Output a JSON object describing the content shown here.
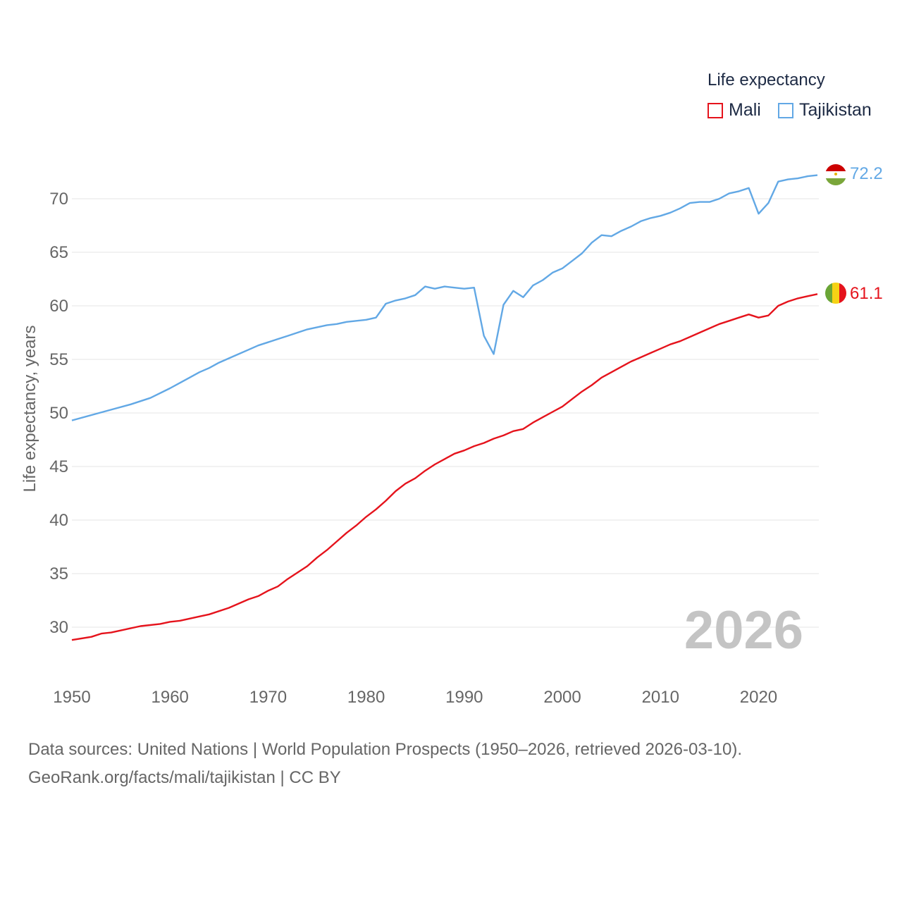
{
  "chart_data": {
    "type": "line",
    "title": "Life expectancy",
    "ylabel": "Life expectancy, years",
    "xlabel": "",
    "xlim": [
      1950,
      2026
    ],
    "ylim": [
      27,
      73.5
    ],
    "x_ticks": [
      "1950",
      "1960",
      "1970",
      "1980",
      "1990",
      "2000",
      "2010",
      "2020"
    ],
    "y_ticks": [
      "30",
      "35",
      "40",
      "45",
      "50",
      "55",
      "60",
      "65",
      "70"
    ],
    "year_watermark": "2026",
    "grid": true,
    "series": [
      {
        "name": "Mali",
        "color": "#e5131c",
        "end_label": "61.1",
        "flag": "mali-flag",
        "points": [
          [
            1950,
            28.8
          ],
          [
            1952,
            29.1
          ],
          [
            1953,
            29.4
          ],
          [
            1954,
            29.5
          ],
          [
            1955,
            29.7
          ],
          [
            1957,
            30.1
          ],
          [
            1959,
            30.3
          ],
          [
            1960,
            30.5
          ],
          [
            1961,
            30.6
          ],
          [
            1963,
            31.0
          ],
          [
            1964,
            31.2
          ],
          [
            1966,
            31.8
          ],
          [
            1968,
            32.6
          ],
          [
            1969,
            32.9
          ],
          [
            1970,
            33.4
          ],
          [
            1971,
            33.8
          ],
          [
            1972,
            34.5
          ],
          [
            1973,
            35.1
          ],
          [
            1974,
            35.7
          ],
          [
            1975,
            36.5
          ],
          [
            1976,
            37.2
          ],
          [
            1977,
            38.0
          ],
          [
            1978,
            38.8
          ],
          [
            1979,
            39.5
          ],
          [
            1980,
            40.3
          ],
          [
            1981,
            41.0
          ],
          [
            1982,
            41.8
          ],
          [
            1983,
            42.7
          ],
          [
            1984,
            43.4
          ],
          [
            1985,
            43.9
          ],
          [
            1986,
            44.6
          ],
          [
            1987,
            45.2
          ],
          [
            1988,
            45.7
          ],
          [
            1989,
            46.2
          ],
          [
            1990,
            46.5
          ],
          [
            1991,
            46.9
          ],
          [
            1992,
            47.2
          ],
          [
            1993,
            47.6
          ],
          [
            1994,
            47.9
          ],
          [
            1995,
            48.3
          ],
          [
            1996,
            48.5
          ],
          [
            1997,
            49.1
          ],
          [
            1998,
            49.6
          ],
          [
            1999,
            50.1
          ],
          [
            2000,
            50.6
          ],
          [
            2001,
            51.3
          ],
          [
            2002,
            52.0
          ],
          [
            2003,
            52.6
          ],
          [
            2004,
            53.3
          ],
          [
            2005,
            53.8
          ],
          [
            2006,
            54.3
          ],
          [
            2007,
            54.8
          ],
          [
            2008,
            55.2
          ],
          [
            2009,
            55.6
          ],
          [
            2010,
            56.0
          ],
          [
            2011,
            56.4
          ],
          [
            2012,
            56.7
          ],
          [
            2013,
            57.1
          ],
          [
            2014,
            57.5
          ],
          [
            2015,
            57.9
          ],
          [
            2016,
            58.3
          ],
          [
            2017,
            58.6
          ],
          [
            2018,
            58.9
          ],
          [
            2019,
            59.2
          ],
          [
            2020,
            58.9
          ],
          [
            2021,
            59.1
          ],
          [
            2022,
            60.0
          ],
          [
            2023,
            60.4
          ],
          [
            2024,
            60.7
          ],
          [
            2025,
            60.9
          ],
          [
            2026,
            61.1
          ]
        ]
      },
      {
        "name": "Tajikistan",
        "color": "#62a8e5",
        "end_label": "72.2",
        "flag": "tajikistan-flag",
        "points": [
          [
            1950,
            49.3
          ],
          [
            1952,
            49.8
          ],
          [
            1954,
            50.3
          ],
          [
            1956,
            50.8
          ],
          [
            1958,
            51.4
          ],
          [
            1960,
            52.3
          ],
          [
            1961,
            52.8
          ],
          [
            1962,
            53.3
          ],
          [
            1963,
            53.8
          ],
          [
            1964,
            54.2
          ],
          [
            1965,
            54.7
          ],
          [
            1966,
            55.1
          ],
          [
            1967,
            55.5
          ],
          [
            1968,
            55.9
          ],
          [
            1969,
            56.3
          ],
          [
            1970,
            56.6
          ],
          [
            1971,
            56.9
          ],
          [
            1972,
            57.2
          ],
          [
            1973,
            57.5
          ],
          [
            1974,
            57.8
          ],
          [
            1975,
            58.0
          ],
          [
            1976,
            58.2
          ],
          [
            1977,
            58.3
          ],
          [
            1978,
            58.5
          ],
          [
            1979,
            58.6
          ],
          [
            1980,
            58.7
          ],
          [
            1981,
            58.9
          ],
          [
            1982,
            60.2
          ],
          [
            1983,
            60.5
          ],
          [
            1984,
            60.7
          ],
          [
            1985,
            61.0
          ],
          [
            1986,
            61.8
          ],
          [
            1987,
            61.6
          ],
          [
            1988,
            61.8
          ],
          [
            1989,
            61.7
          ],
          [
            1990,
            61.6
          ],
          [
            1991,
            61.7
          ],
          [
            1992,
            57.2
          ],
          [
            1993,
            55.5
          ],
          [
            1994,
            60.1
          ],
          [
            1995,
            61.4
          ],
          [
            1996,
            60.8
          ],
          [
            1997,
            61.9
          ],
          [
            1998,
            62.4
          ],
          [
            1999,
            63.1
          ],
          [
            2000,
            63.5
          ],
          [
            2001,
            64.2
          ],
          [
            2002,
            64.9
          ],
          [
            2003,
            65.9
          ],
          [
            2004,
            66.6
          ],
          [
            2005,
            66.5
          ],
          [
            2006,
            67.0
          ],
          [
            2007,
            67.4
          ],
          [
            2008,
            67.9
          ],
          [
            2009,
            68.2
          ],
          [
            2010,
            68.4
          ],
          [
            2011,
            68.7
          ],
          [
            2012,
            69.1
          ],
          [
            2013,
            69.6
          ],
          [
            2014,
            69.7
          ],
          [
            2015,
            69.7
          ],
          [
            2016,
            70.0
          ],
          [
            2017,
            70.5
          ],
          [
            2018,
            70.7
          ],
          [
            2019,
            71.0
          ],
          [
            2020,
            68.6
          ],
          [
            2021,
            69.6
          ],
          [
            2022,
            71.6
          ],
          [
            2023,
            71.8
          ],
          [
            2024,
            71.9
          ],
          [
            2025,
            72.1
          ],
          [
            2026,
            72.2
          ]
        ]
      }
    ]
  },
  "legend": {
    "title": "Life expectancy",
    "items": [
      {
        "label": "Mali",
        "color": "#e5131c"
      },
      {
        "label": "Tajikistan",
        "color": "#62a8e5"
      }
    ]
  },
  "footer": {
    "sources": "Data sources: United Nations | World Population Prospects (1950–2026, retrieved 2026-03-10).",
    "license": "GeoRank.org/facts/mali/tajikistan | CC BY"
  }
}
